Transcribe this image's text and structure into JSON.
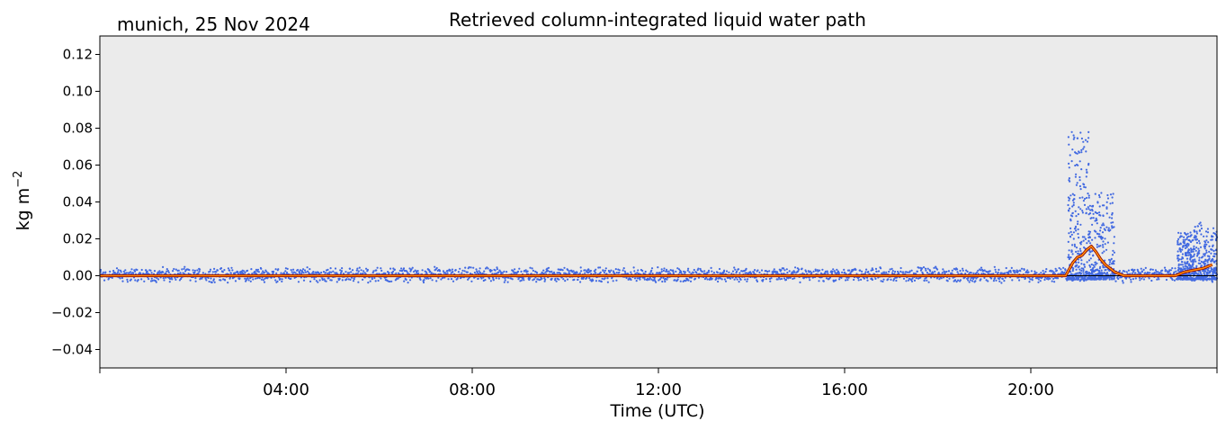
{
  "location_date": "munich, 25 Nov 2024",
  "chart_data": {
    "type": "scatter",
    "title": "Retrieved column-integrated liquid water path",
    "xlabel": "Time (UTC)",
    "ylabel": "kg m",
    "ylabel_sup": "−2",
    "xlim": [
      0,
      24
    ],
    "ylim": [
      -0.05,
      0.13
    ],
    "grid": false,
    "background": "#ebebeb",
    "x_ticks": [
      0,
      4,
      8,
      12,
      16,
      20,
      24
    ],
    "x_tick_labels": [
      "",
      "04:00",
      "08:00",
      "12:00",
      "16:00",
      "20:00",
      ""
    ],
    "y_ticks": [
      -0.04,
      -0.02,
      0.0,
      0.02,
      0.04,
      0.06,
      0.08,
      0.1,
      0.12
    ],
    "y_tick_labels": [
      "−0.04",
      "−0.02",
      "0.00",
      "0.02",
      "0.04",
      "0.06",
      "0.08",
      "0.10",
      "0.12"
    ],
    "zero_line": 0.0,
    "series": [
      {
        "kind": "scatter",
        "color": "#4169e1",
        "noise_band": [
          -0.004,
          0.005
        ],
        "bursts": [
          {
            "x": [
              20.8,
              21.25
            ],
            "max": 0.08
          },
          {
            "x": [
              21.25,
              21.8
            ],
            "max": 0.047
          },
          {
            "x": [
              23.15,
              23.5
            ],
            "max": 0.026
          },
          {
            "x": [
              23.5,
              24.0
            ],
            "max": 0.032
          }
        ]
      },
      {
        "kind": "line",
        "color": "#ff8c00",
        "outline": "#8b0000",
        "x": [
          0,
          20.75,
          20.9,
          21.0,
          21.1,
          21.2,
          21.3,
          21.4,
          21.5,
          21.6,
          21.7,
          21.8,
          22.0,
          23.1,
          23.3,
          23.5,
          23.7,
          23.9
        ],
        "y": [
          0,
          0,
          0.007,
          0.01,
          0.011,
          0.014,
          0.016,
          0.013,
          0.009,
          0.006,
          0.004,
          0.002,
          0,
          0,
          0.002,
          0.003,
          0.004,
          0.006
        ]
      }
    ]
  }
}
